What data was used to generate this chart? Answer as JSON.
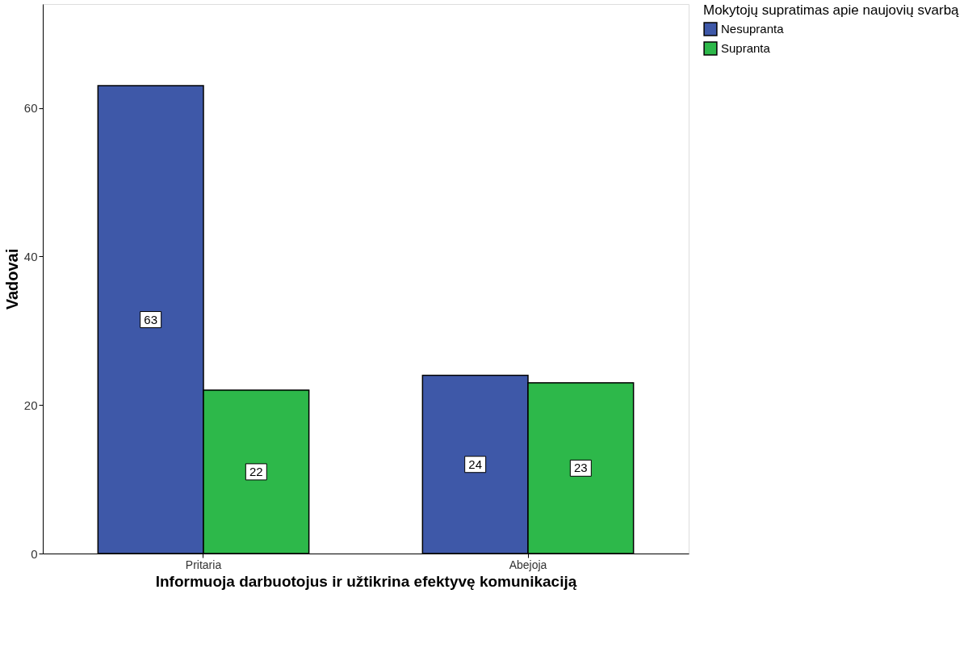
{
  "chart_data": {
    "type": "bar",
    "xlabel": "Informuoja darbuotojus ir užtikrina efektyvę komunikaciją",
    "ylabel": "Vadovai",
    "legend_title": "Mokytojų supratimas apie naujovių svarbą",
    "categories": [
      "Pritaria",
      "Abejoja"
    ],
    "series": [
      {
        "name": "Nesupranta",
        "color": "#3e58a8",
        "values": [
          63,
          24
        ]
      },
      {
        "name": "Supranta",
        "color": "#2db84a",
        "values": [
          22,
          23
        ]
      }
    ],
    "ylim": [
      0,
      74
    ],
    "yticks": [
      0,
      20,
      40,
      60
    ],
    "grid": false,
    "legend": "top right",
    "data_labels": true
  }
}
